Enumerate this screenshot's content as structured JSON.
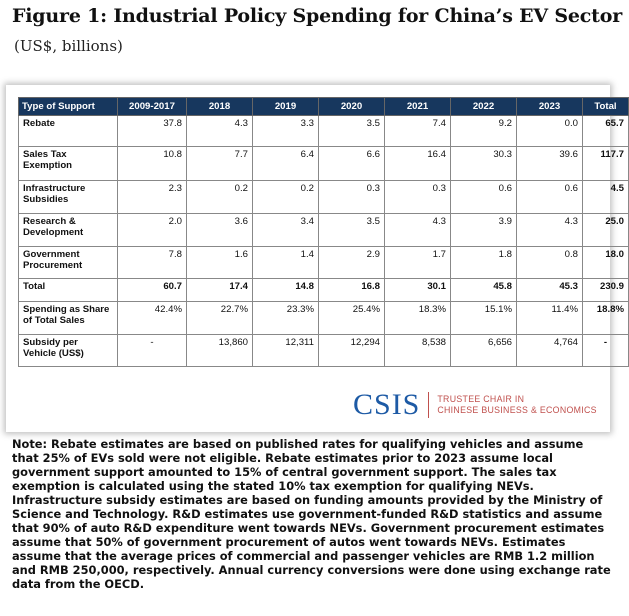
{
  "title": "Figure 1: Industrial Policy Spending for China’s EV Sector",
  "subtitle": "(US$, billions)",
  "chart_data": {
    "type": "table",
    "columns": [
      "Type of Support",
      "2009-2017",
      "2018",
      "2019",
      "2020",
      "2021",
      "2022",
      "2023",
      "Total"
    ],
    "rows": [
      {
        "label": "Rebate",
        "values": [
          "37.8",
          "4.3",
          "3.3",
          "3.5",
          "7.4",
          "9.2",
          "0.0"
        ],
        "total": "65.7"
      },
      {
        "label": "Sales Tax Exemption",
        "values": [
          "10.8",
          "7.7",
          "6.4",
          "6.6",
          "16.4",
          "30.3",
          "39.6"
        ],
        "total": "117.7"
      },
      {
        "label": "Infrastructure Subsidies",
        "values": [
          "2.3",
          "0.2",
          "0.2",
          "0.3",
          "0.3",
          "0.6",
          "0.6"
        ],
        "total": "4.5"
      },
      {
        "label": "Research & Development",
        "values": [
          "2.0",
          "3.6",
          "3.4",
          "3.5",
          "4.3",
          "3.9",
          "4.3"
        ],
        "total": "25.0"
      },
      {
        "label": "Government Procurement",
        "values": [
          "7.8",
          "1.6",
          "1.4",
          "2.9",
          "1.7",
          "1.8",
          "0.8"
        ],
        "total": "18.0"
      },
      {
        "label": "Total",
        "values": [
          "60.7",
          "17.4",
          "14.8",
          "16.8",
          "30.1",
          "45.8",
          "45.3"
        ],
        "total": "230.9"
      },
      {
        "label": "Spending as Share of Total Sales",
        "values": [
          "42.4%",
          "22.7%",
          "23.3%",
          "25.4%",
          "18.3%",
          "15.1%",
          "11.4%"
        ],
        "total": "18.8%"
      },
      {
        "label": "Subsidy per Vehicle (US$)",
        "values": [
          "-",
          "13,860",
          "12,311",
          "12,294",
          "8,538",
          "6,656",
          "4,764"
        ],
        "total": "-"
      }
    ]
  },
  "logo": {
    "word": "CSIS",
    "tagline_1": "TRUSTEE CHAIR IN",
    "tagline_2": "CHINESE BUSINESS & ECONOMICS"
  },
  "note": "Note: Rebate estimates are based on published rates for qualifying vehicles and assume that 25% of EVs sold were not eligible. Rebate estimates prior to 2023 assume local government support amounted to 15% of central government support. The sales tax exemption is calculated using the stated 10% tax exemption for qualifying NEVs. Infrastructure subsidy estimates are based on funding amounts provided by the Ministry of Science and Technology. R&D estimates use government-funded R&D statistics and assume that 90% of auto R&D expenditure went towards NEVs. Government procurement estimates assume that 50% of government procurement of autos went towards NEVs. Estimates assume that the average prices of commercial and passenger vehicles are RMB 1.2 million and RMB 250,000, respectively. Annual currency conversions were done using exchange rate data from the OECD."
}
